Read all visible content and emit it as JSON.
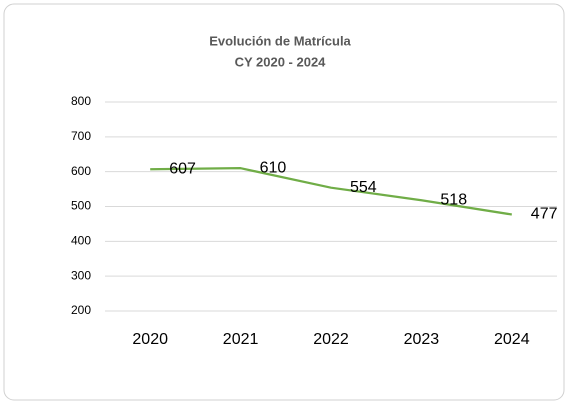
{
  "chart_data": {
    "type": "line",
    "title": "Evolución de Matrícula",
    "subtitle": "CY 2020 - 2024",
    "categories": [
      "2020",
      "2021",
      "2022",
      "2023",
      "2024"
    ],
    "series": [
      {
        "name": "Matrícula",
        "color": "#70ad47",
        "values": [
          607,
          610,
          554,
          518,
          477
        ]
      }
    ],
    "ylim": [
      200,
      800
    ],
    "yticks": [
      200,
      300,
      400,
      500,
      600,
      700,
      800
    ],
    "grid": true
  }
}
